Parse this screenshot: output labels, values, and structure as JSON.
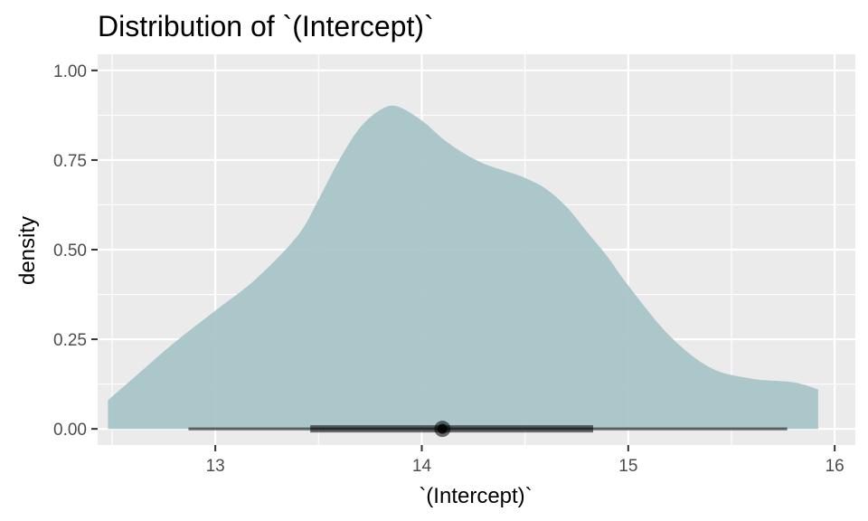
{
  "chart_data": {
    "type": "area",
    "title": "Distribution of `(Intercept)`",
    "xlabel": "`(Intercept)`",
    "ylabel": "density",
    "xlim": [
      12.43,
      16.1
    ],
    "ylim": [
      -0.045,
      1.045
    ],
    "x_ticks": [
      13,
      14,
      15,
      16
    ],
    "y_ticks": [
      0.0,
      0.25,
      0.5,
      0.75,
      1.0
    ],
    "y_tick_labels": [
      "0.00",
      "0.25",
      "0.50",
      "0.75",
      "1.00"
    ],
    "x_tick_labels": [
      "13",
      "14",
      "15",
      "16"
    ],
    "grid": true,
    "density": {
      "x": [
        12.48,
        12.6,
        12.8,
        13.0,
        13.2,
        13.4,
        13.5,
        13.6,
        13.7,
        13.8,
        13.88,
        14.0,
        14.1,
        14.2,
        14.3,
        14.4,
        14.5,
        14.6,
        14.7,
        14.8,
        14.9,
        15.0,
        15.2,
        15.4,
        15.6,
        15.8,
        15.92
      ],
      "y": [
        0.08,
        0.14,
        0.24,
        0.33,
        0.42,
        0.54,
        0.64,
        0.75,
        0.84,
        0.89,
        0.9,
        0.86,
        0.81,
        0.77,
        0.74,
        0.72,
        0.7,
        0.67,
        0.62,
        0.55,
        0.48,
        0.4,
        0.26,
        0.17,
        0.14,
        0.13,
        0.11
      ]
    },
    "interval": {
      "point": 14.1,
      "inner": [
        13.46,
        14.83
      ],
      "outer": [
        12.87,
        15.77
      ]
    },
    "colors": {
      "panel": "#EBEBEB",
      "grid": "#FFFFFF",
      "fill": "#A8C5C7",
      "interval": "#000000"
    }
  }
}
